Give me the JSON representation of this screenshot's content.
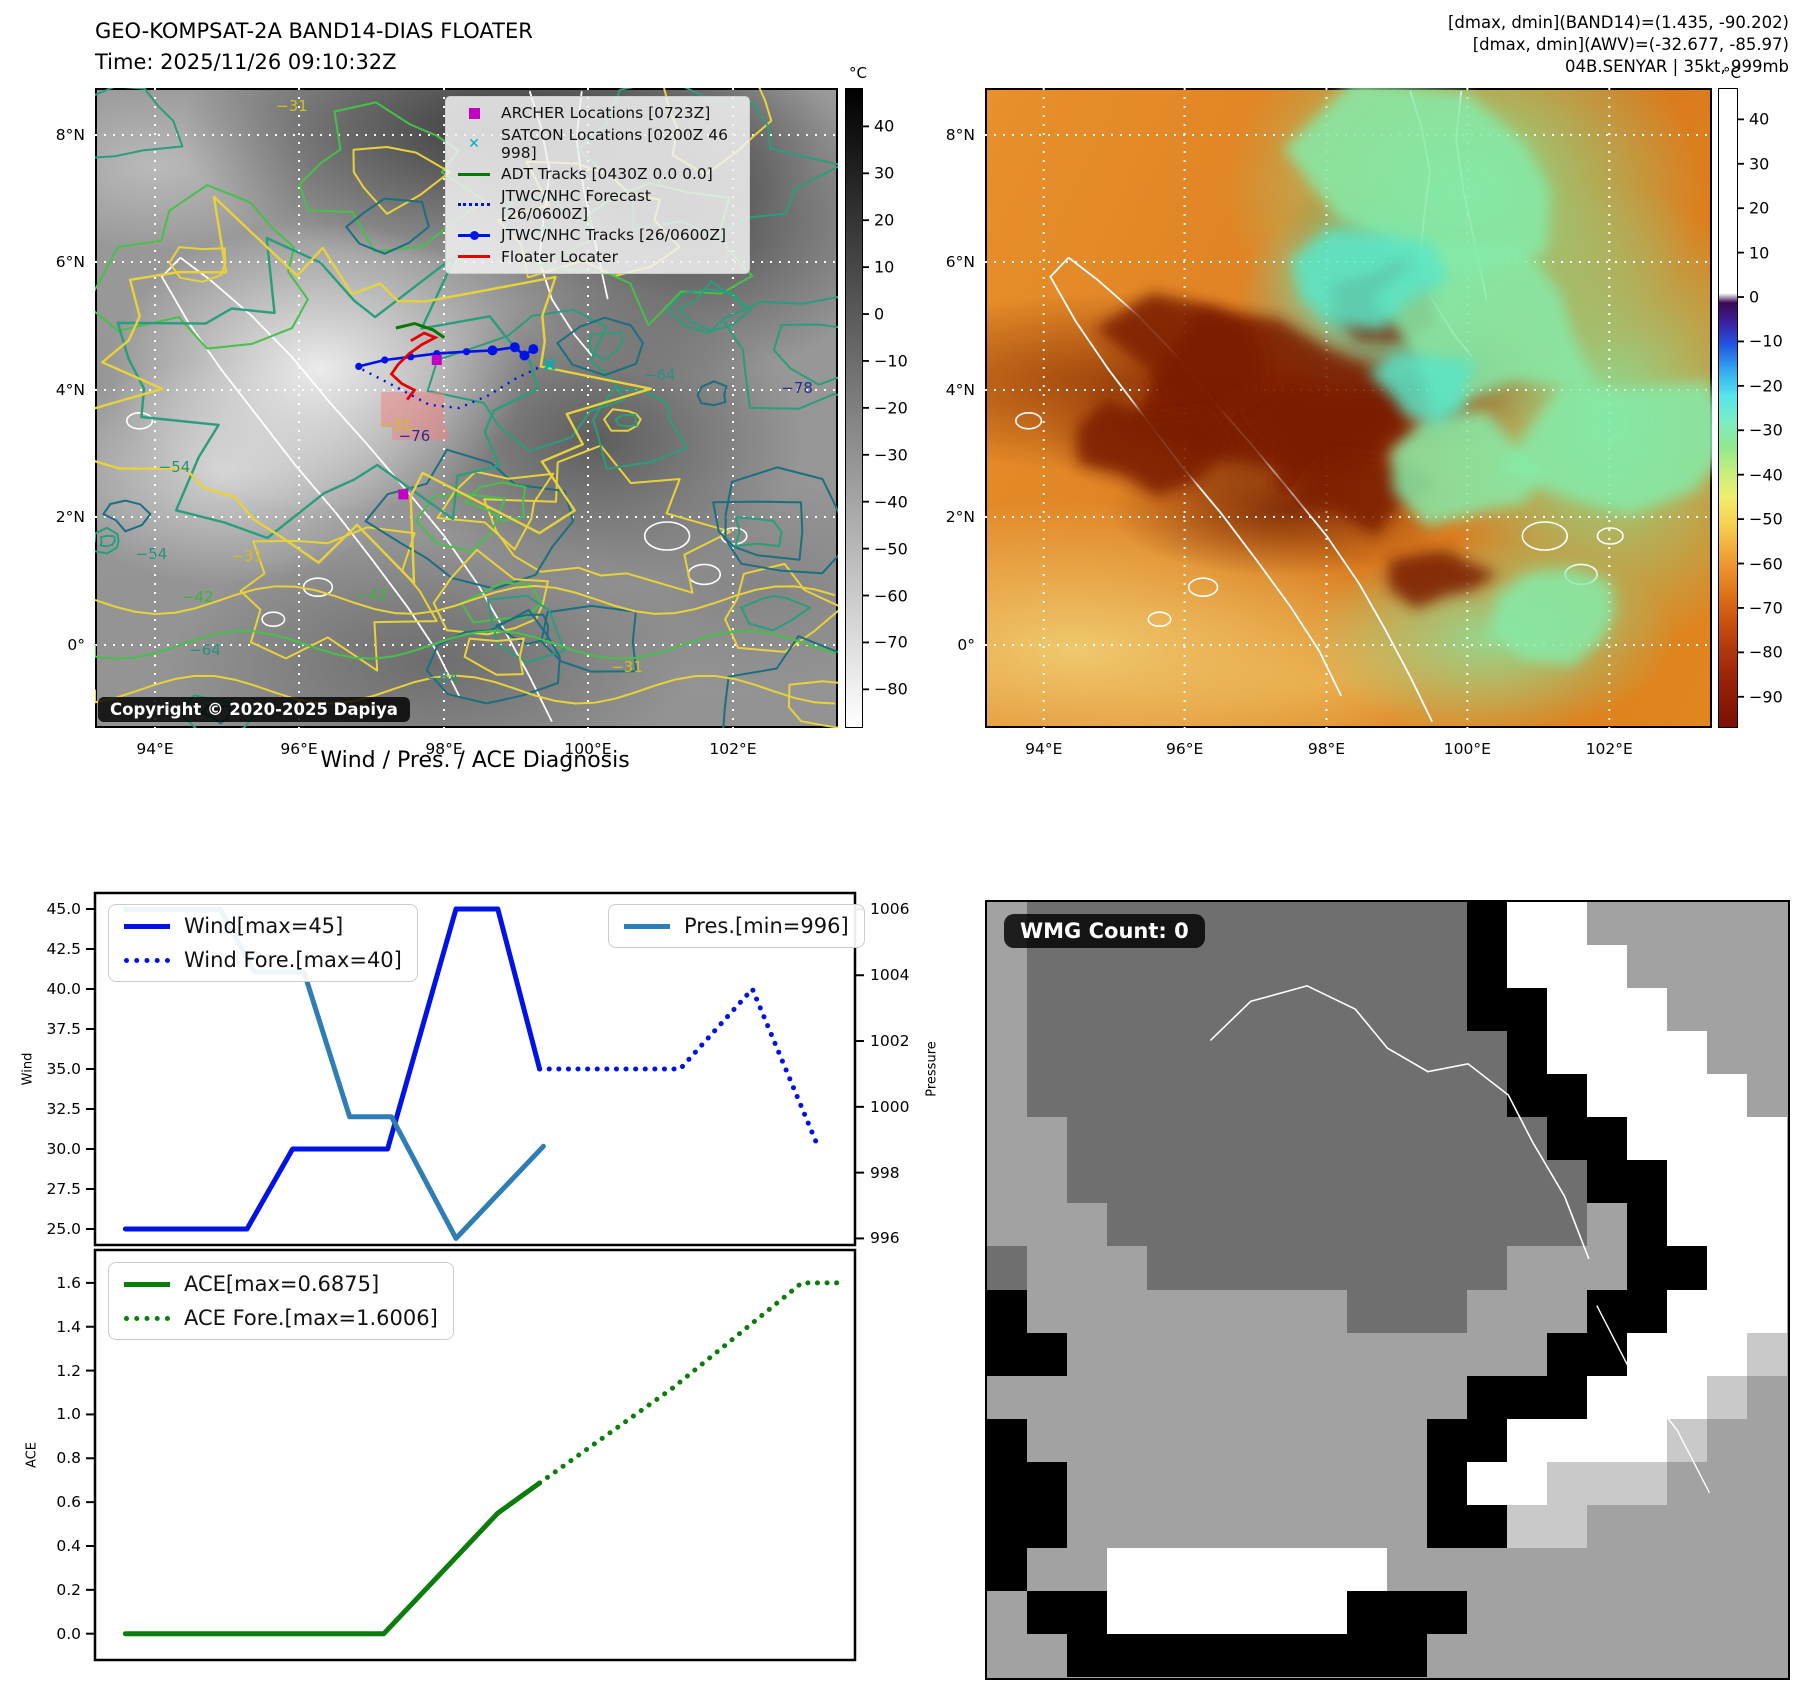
{
  "left_map": {
    "title": "GEO-KOMPSAT-2A BAND14-DIAS FLOATER",
    "subtitle": "Time: 2025/11/26 09:10:32Z",
    "copyright": "Copyright © 2020-2025 Dapiya",
    "legend_items": [
      {
        "label": "ARCHER Locations [0723Z]",
        "marker": "square",
        "color": "#c400c4"
      },
      {
        "label": "SATCON Locations [0200Z 46 998]",
        "marker": "x",
        "color": "#00b0b0"
      },
      {
        "label": "ADT Tracks [0430Z 0.0 0.0]",
        "marker": "line",
        "color": "#067806"
      },
      {
        "label": "JTWC/NHC Forecast [26/0600Z]",
        "marker": "dotted",
        "color": "#0013e6"
      },
      {
        "label": "JTWC/NHC Tracks [26/0600Z]",
        "marker": "line-dot",
        "color": "#0013e6"
      },
      {
        "label": "Floater Locater",
        "marker": "line",
        "color": "#e60000"
      }
    ],
    "lat_ticks": [
      "8°N",
      "6°N",
      "4°N",
      "2°N",
      "0°"
    ],
    "lon_ticks": [
      "94°E",
      "96°E",
      "98°E",
      "100°E",
      "102°E"
    ],
    "colorbar": {
      "unit": "°C",
      "ticks": [
        "40",
        "30",
        "20",
        "10",
        "0",
        "−10",
        "−20",
        "−30",
        "−40",
        "−50",
        "−60",
        "−70",
        "−80"
      ]
    },
    "contour_labels": [
      {
        "text": "−31",
        "fx": 0.265,
        "fy": 0.028,
        "c": "y"
      },
      {
        "text": "−54",
        "fx": 0.107,
        "fy": 0.592,
        "c": "t"
      },
      {
        "text": "−54",
        "fx": 0.076,
        "fy": 0.728,
        "c": "t"
      },
      {
        "text": "−31",
        "fx": 0.205,
        "fy": 0.732,
        "c": "y"
      },
      {
        "text": "−42",
        "fx": 0.138,
        "fy": 0.796,
        "c": "g"
      },
      {
        "text": "−64",
        "fx": 0.148,
        "fy": 0.878,
        "c": "t"
      },
      {
        "text": "−64",
        "fx": 0.468,
        "fy": 0.922,
        "c": "t"
      },
      {
        "text": "−31",
        "fx": 0.716,
        "fy": 0.905,
        "c": "y"
      },
      {
        "text": "−42",
        "fx": 0.372,
        "fy": 0.792,
        "c": "g"
      },
      {
        "text": "−31",
        "fx": 0.405,
        "fy": 0.527,
        "c": "y"
      },
      {
        "text": "−76",
        "fx": 0.43,
        "fy": 0.543,
        "c": "n"
      },
      {
        "text": "−78",
        "fx": 0.945,
        "fy": 0.468,
        "c": "n"
      },
      {
        "text": "−64",
        "fx": 0.76,
        "fy": 0.448,
        "c": "t"
      }
    ]
  },
  "right_map": {
    "header_lines": [
      "[dmax, dmin](BAND14)=(1.435, -90.202)",
      "[dmax, dmin](AWV)=(-32.677, -85.97)",
      "04B.SENYAR | 35kt, 999mb"
    ],
    "lat_ticks": [
      "8°N",
      "6°N",
      "4°N",
      "2°N",
      "0°"
    ],
    "lon_ticks": [
      "94°E",
      "96°E",
      "98°E",
      "100°E",
      "102°E"
    ],
    "colorbar": {
      "unit": "°C",
      "ticks": [
        "40",
        "30",
        "20",
        "10",
        "0",
        "−10",
        "−20",
        "−30",
        "−40",
        "−50",
        "−60",
        "−70",
        "−80",
        "−90"
      ]
    }
  },
  "wmg_panel": {
    "label": "WMG Count: 0"
  },
  "chart_data": [
    {
      "type": "line",
      "title": "Wind / Pres. / ACE Diagnosis",
      "ylabel": "Wind",
      "ylabel_right": "Pressure",
      "ylim": [
        24,
        46
      ],
      "ylim_right": [
        995.8,
        1006.5
      ],
      "yticks_left": [
        "45.0",
        "42.5",
        "40.0",
        "37.5",
        "35.0",
        "32.5",
        "30.0",
        "27.5",
        "25.0"
      ],
      "ytick_values_left": [
        45,
        42.5,
        40,
        37.5,
        35,
        32.5,
        30,
        27.5,
        25
      ],
      "yticks_right": [
        "1006",
        "1004",
        "1002",
        "1000",
        "998",
        "996"
      ],
      "ytick_values_right": [
        1006,
        1004,
        1002,
        1000,
        998,
        996
      ],
      "grid": false,
      "legend_position": [
        "upper left",
        "upper right"
      ],
      "series": [
        {
          "name": "Wind[max=45]",
          "axis": "left",
          "style": "solid",
          "color": "#0013e6",
          "points": [
            [
              0.04,
              25
            ],
            [
              0.2,
              25
            ],
            [
              0.26,
              30
            ],
            [
              0.385,
              30
            ],
            [
              0.475,
              45
            ],
            [
              0.53,
              45
            ],
            [
              0.585,
              35
            ]
          ]
        },
        {
          "name": "Wind Fore.[max=40]",
          "axis": "left",
          "style": "dotted",
          "color": "#0013e6",
          "points": [
            [
              0.585,
              35
            ],
            [
              0.77,
              35
            ],
            [
              0.865,
              40
            ],
            [
              0.95,
              30.3
            ]
          ]
        },
        {
          "name": "Pres.[min=996]",
          "axis": "right",
          "style": "solid",
          "color": "#2e7eb5",
          "points": [
            [
              0.04,
              1006
            ],
            [
              0.165,
              1006
            ],
            [
              0.21,
              1004.1
            ],
            [
              0.275,
              1004.1
            ],
            [
              0.335,
              999.7
            ],
            [
              0.39,
              999.7
            ],
            [
              0.475,
              996
            ],
            [
              0.59,
              998.8
            ]
          ]
        }
      ]
    },
    {
      "type": "line",
      "ylabel": "ACE",
      "ylim": [
        -0.12,
        1.75
      ],
      "yticks_left": [
        "1.6",
        "1.4",
        "1.2",
        "1.0",
        "0.8",
        "0.6",
        "0.4",
        "0.2",
        "0.0"
      ],
      "ytick_values_left": [
        1.6,
        1.4,
        1.2,
        1.0,
        0.8,
        0.6,
        0.4,
        0.2,
        0.0
      ],
      "grid": false,
      "legend_position": [
        "upper left"
      ],
      "series": [
        {
          "name": "ACE[max=0.6875]",
          "style": "solid",
          "color": "#0a7d0a",
          "points": [
            [
              0.04,
              0
            ],
            [
              0.38,
              0
            ],
            [
              0.53,
              0.55
            ],
            [
              0.585,
              0.6875
            ]
          ]
        },
        {
          "name": "ACE Fore.[max=1.6006]",
          "style": "dotted",
          "color": "#0a7d0a",
          "points": [
            [
              0.585,
              0.6875
            ],
            [
              0.76,
              1.12
            ],
            [
              0.93,
              1.6
            ],
            [
              0.985,
              1.6
            ]
          ]
        }
      ]
    },
    {
      "type": "heatmap",
      "name": "wmg-classification-grid",
      "palette": {
        "0": "#000000",
        "1": "#6f6f6f",
        "2": "#a2a2a2",
        "3": "#ffffff",
        "4": "#c9c9c9"
      },
      "grid": [
        "21111111111103322222",
        "21111111111103332222",
        "21111111111100333222",
        "21111111111110333322",
        "21111111111110033332",
        "22111111111111003333",
        "22111111111111100333",
        "22211111111111120333",
        "12221111111112220033",
        "02222222211122200333",
        "00222222222222003334",
        "22222222222200033342",
        "02222222222003333422",
        "00222222222033444222",
        "00222222222004422222",
        "02233333332222222222",
        "20033333300022222222",
        "22000000000222222222"
      ]
    }
  ],
  "label_colors": {
    "y": "#cfc020",
    "g": "#3fb040",
    "t": "#2a8f7f",
    "n": "#26308a"
  }
}
